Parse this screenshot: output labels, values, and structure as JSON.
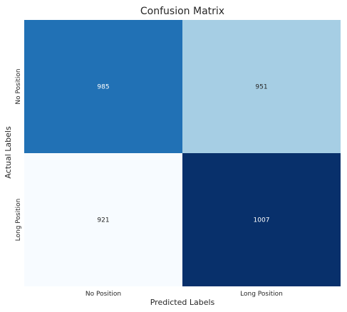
{
  "chart_data": {
    "type": "heatmap",
    "title": "Confusion Matrix",
    "xlabel": "Predicted Labels",
    "ylabel": "Actual Labels",
    "x_categories": [
      "No Position",
      "Long Position"
    ],
    "y_categories": [
      "No Position",
      "Long Position"
    ],
    "values": [
      [
        985,
        951
      ],
      [
        921,
        1007
      ]
    ],
    "colormap": "Blues",
    "colorbar": false,
    "grid": false
  },
  "colors": {
    "cell_colors": [
      [
        "#2171b5",
        "#a6cee4"
      ],
      [
        "#f7fbff",
        "#08306b"
      ]
    ],
    "cell_text_colors": [
      [
        "#ffffff",
        "#262626"
      ],
      [
        "#262626",
        "#ffffff"
      ]
    ]
  }
}
